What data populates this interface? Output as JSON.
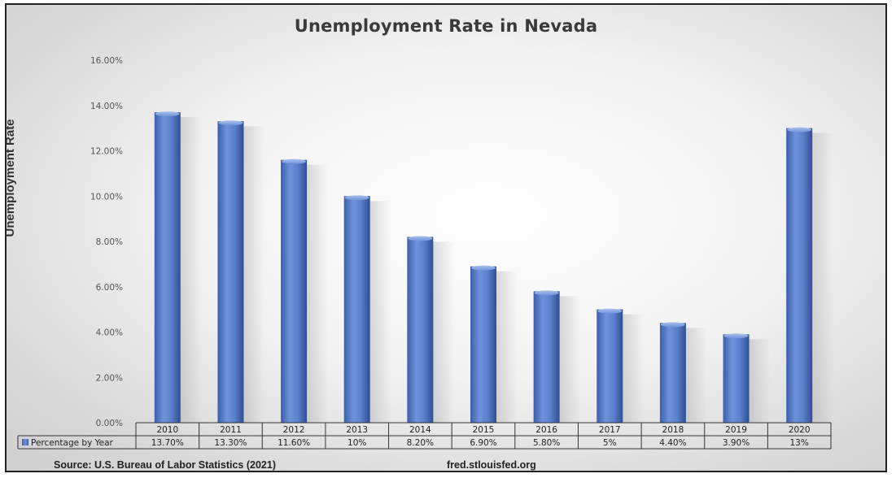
{
  "chart_data": {
    "type": "bar",
    "title": "Unemployment Rate in Nevada",
    "xlabel": "",
    "ylabel": "Unemployment Rate",
    "categories": [
      "2010",
      "2011",
      "2012",
      "2013",
      "2014",
      "2015",
      "2016",
      "2017",
      "2018",
      "2019",
      "2020"
    ],
    "series": [
      {
        "name": "Percentage by Year",
        "values": [
          13.7,
          13.3,
          11.6,
          10,
          8.2,
          6.9,
          5.8,
          5,
          4.4,
          3.9,
          13
        ],
        "labels": [
          "13.70%",
          "13.30%",
          "11.60%",
          "10%",
          "8.20%",
          "6.90%",
          "5.80%",
          "5%",
          "4.40%",
          "3.90%",
          "13%"
        ]
      }
    ],
    "yticks": [
      "0.00%",
      "2.00%",
      "4.00%",
      "6.00%",
      "8.00%",
      "10.00%",
      "12.00%",
      "14.00%",
      "16.00%"
    ],
    "ylim": [
      0,
      16
    ],
    "grid": false,
    "legend": "data-table",
    "bar_color": "#4a72c4"
  },
  "source_text": "Source: U.S. Bureau of Labor Statistics (2021)",
  "site_text": "fred.stlouisfed.org"
}
